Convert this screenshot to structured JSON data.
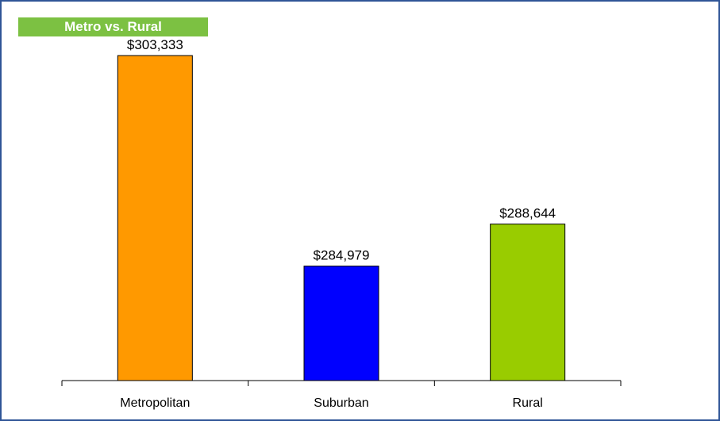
{
  "chart_data": {
    "type": "bar",
    "title": "Metro vs. Rural",
    "categories": [
      "Metropolitan",
      "Suburban",
      "Rural"
    ],
    "values": [
      303333,
      284979,
      288644
    ],
    "value_labels": [
      "$303,333",
      "$284,979",
      "$288,644"
    ],
    "colors": [
      "#ff9900",
      "#0000ff",
      "#99cc00"
    ],
    "ylim": [
      275000,
      305000
    ],
    "grid": false,
    "legend": "none"
  }
}
